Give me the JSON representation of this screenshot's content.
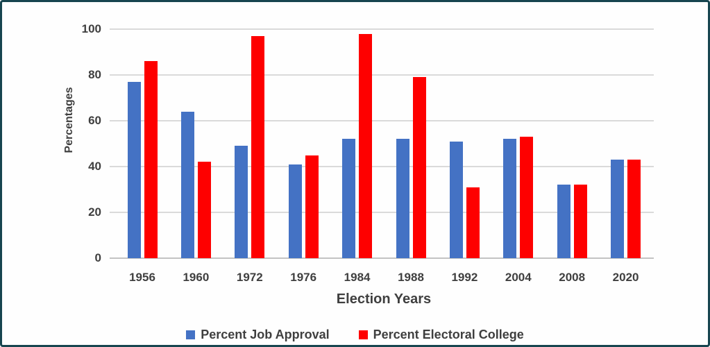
{
  "chart_data": {
    "type": "bar",
    "title": "",
    "categories": [
      "1956",
      "1960",
      "1972",
      "1976",
      "1984",
      "1988",
      "1992",
      "2004",
      "2008",
      "2020"
    ],
    "series": [
      {
        "name": "Percent Job Approval",
        "color": "#4472c4",
        "values": [
          77,
          64,
          49,
          41,
          52,
          52,
          51,
          52,
          32,
          43
        ]
      },
      {
        "name": "Percent Electoral College",
        "color": "#fe0000",
        "values": [
          86,
          42,
          97,
          45,
          98,
          79,
          31,
          53,
          32,
          43
        ]
      }
    ],
    "xlabel": "Election Years",
    "ylabel": "Percentages",
    "ylim": [
      0,
      100
    ],
    "yticks": [
      0,
      20,
      40,
      60,
      80,
      100
    ],
    "grid": true,
    "legend_position": "bottom"
  },
  "colors": {
    "frame_border": "#17454f",
    "gridline": "#dadada",
    "axis_line": "#c3c3c3",
    "text": "#3f3f3f",
    "background": "#fefefe"
  }
}
